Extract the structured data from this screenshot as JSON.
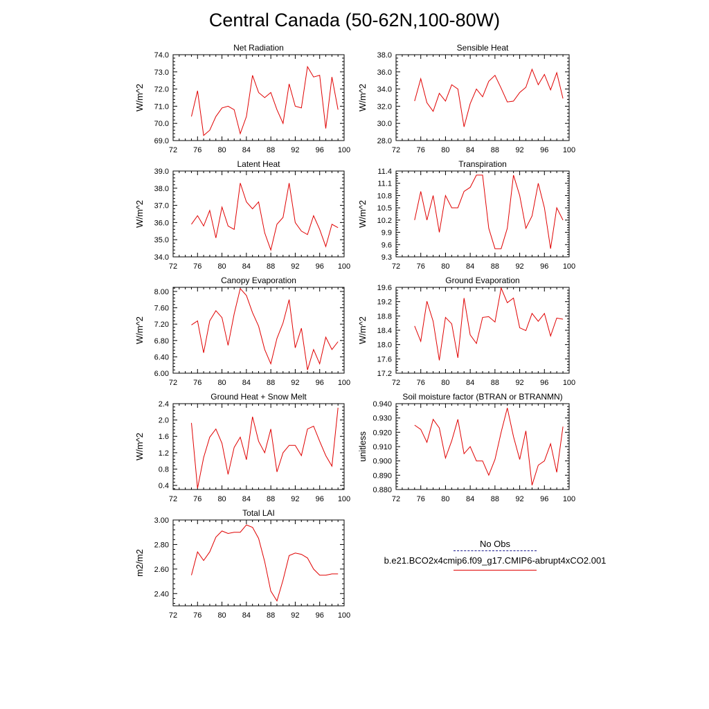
{
  "title": "Central Canada (50-62N,100-80W)",
  "legend": {
    "obs_label": "No Obs",
    "obs_color": "#1a1a8c",
    "model_label": "b.e21.BCO2x4cmip6.f09_g17.CMIP6-abrupt4xCO2.001",
    "model_color": "#e00000"
  },
  "chart_data": [
    {
      "type": "line",
      "title": "Net Radiation",
      "ylabel": "W/m^2",
      "xlim": [
        72,
        100
      ],
      "ylim": [
        69.0,
        74.0
      ],
      "x_ticks": [
        "72",
        "76",
        "80",
        "84",
        "88",
        "92",
        "96",
        "100"
      ],
      "y_ticks": [
        "69.0",
        "70.0",
        "71.0",
        "72.0",
        "73.0",
        "74.0"
      ],
      "x": [
        75,
        76,
        77,
        78,
        79,
        80,
        81,
        82,
        83,
        84,
        85,
        86,
        87,
        88,
        89,
        90,
        91,
        92,
        93,
        94,
        95,
        96,
        97,
        98,
        99
      ],
      "y": [
        70.4,
        71.9,
        69.3,
        69.6,
        70.4,
        70.9,
        71.0,
        70.8,
        69.4,
        70.4,
        72.8,
        71.8,
        71.5,
        71.8,
        70.8,
        70.0,
        72.3,
        71.0,
        70.9,
        73.3,
        72.7,
        72.8,
        69.7,
        72.7,
        70.8
      ]
    },
    {
      "type": "line",
      "title": "Sensible Heat",
      "ylabel": "W/m^2",
      "xlim": [
        72,
        100
      ],
      "ylim": [
        28.0,
        38.0
      ],
      "x_ticks": [
        "72",
        "76",
        "80",
        "84",
        "88",
        "92",
        "96",
        "100"
      ],
      "y_ticks": [
        "28.0",
        "30.0",
        "32.0",
        "34.0",
        "36.0",
        "38.0"
      ],
      "x": [
        75,
        76,
        77,
        78,
        79,
        80,
        81,
        82,
        83,
        84,
        85,
        86,
        87,
        88,
        89,
        90,
        91,
        92,
        93,
        94,
        95,
        96,
        97,
        98,
        99
      ],
      "y": [
        32.6,
        35.2,
        32.4,
        31.4,
        33.5,
        32.6,
        34.5,
        34.0,
        29.6,
        32.3,
        34.0,
        33.1,
        34.9,
        35.6,
        34.1,
        32.5,
        32.6,
        33.6,
        34.2,
        36.3,
        34.5,
        35.7,
        33.9,
        35.9,
        32.9
      ]
    },
    {
      "type": "line",
      "title": "Latent Heat",
      "ylabel": "W/m^2",
      "xlim": [
        72,
        100
      ],
      "ylim": [
        34.0,
        39.0
      ],
      "x_ticks": [
        "72",
        "76",
        "80",
        "84",
        "88",
        "92",
        "96",
        "100"
      ],
      "y_ticks": [
        "34.0",
        "35.0",
        "36.0",
        "37.0",
        "38.0",
        "39.0"
      ],
      "x": [
        75,
        76,
        77,
        78,
        79,
        80,
        81,
        82,
        83,
        84,
        85,
        86,
        87,
        88,
        89,
        90,
        91,
        92,
        93,
        94,
        95,
        96,
        97,
        98,
        99
      ],
      "y": [
        35.9,
        36.4,
        35.8,
        36.7,
        35.1,
        36.9,
        35.8,
        35.6,
        38.3,
        37.2,
        36.8,
        37.2,
        35.4,
        34.4,
        35.9,
        36.3,
        38.3,
        36.0,
        35.5,
        35.3,
        36.4,
        35.6,
        34.6,
        35.9,
        35.7
      ]
    },
    {
      "type": "line",
      "title": "Transpiration",
      "ylabel": "W/m^2",
      "xlim": [
        72,
        100
      ],
      "ylim": [
        9.3,
        11.4
      ],
      "x_ticks": [
        "72",
        "76",
        "80",
        "84",
        "88",
        "92",
        "96",
        "100"
      ],
      "y_ticks": [
        "9.3",
        "9.6",
        "9.9",
        "10.2",
        "10.5",
        "10.8",
        "11.1",
        "11.4"
      ],
      "x": [
        75,
        76,
        77,
        78,
        79,
        80,
        81,
        82,
        83,
        84,
        85,
        86,
        87,
        88,
        89,
        90,
        91,
        92,
        93,
        94,
        95,
        96,
        97,
        98,
        99
      ],
      "y": [
        10.2,
        10.9,
        10.2,
        10.8,
        9.9,
        10.8,
        10.5,
        10.5,
        10.9,
        11.0,
        11.3,
        11.3,
        10.0,
        9.5,
        9.5,
        10.0,
        11.3,
        10.8,
        10.0,
        10.3,
        11.1,
        10.5,
        9.5,
        10.5,
        10.2
      ]
    },
    {
      "type": "line",
      "title": "Canopy Evaporation",
      "ylabel": "W/m^2",
      "xlim": [
        72,
        100
      ],
      "ylim": [
        6.0,
        8.1
      ],
      "x_ticks": [
        "72",
        "76",
        "80",
        "84",
        "88",
        "92",
        "96",
        "100"
      ],
      "y_ticks": [
        "6.00",
        "6.40",
        "6.80",
        "7.20",
        "7.60",
        "8.00"
      ],
      "x": [
        75,
        76,
        77,
        78,
        79,
        80,
        81,
        82,
        83,
        84,
        85,
        86,
        87,
        88,
        89,
        90,
        91,
        92,
        93,
        94,
        95,
        96,
        97,
        98,
        99
      ],
      "y": [
        7.18,
        7.28,
        6.5,
        7.28,
        7.53,
        7.36,
        6.68,
        7.45,
        8.07,
        7.9,
        7.48,
        7.15,
        6.58,
        6.23,
        6.85,
        7.23,
        7.8,
        6.62,
        7.1,
        6.08,
        6.58,
        6.23,
        6.88,
        6.58,
        6.77
      ]
    },
    {
      "type": "line",
      "title": "Ground Evaporation",
      "ylabel": "W/m^2",
      "xlim": [
        72,
        100
      ],
      "ylim": [
        17.2,
        19.6
      ],
      "x_ticks": [
        "72",
        "76",
        "80",
        "84",
        "88",
        "92",
        "96",
        "100"
      ],
      "y_ticks": [
        "17.2",
        "17.6",
        "18.0",
        "18.4",
        "18.8",
        "19.2",
        "19.6"
      ],
      "x": [
        75,
        76,
        77,
        78,
        79,
        80,
        81,
        82,
        83,
        84,
        85,
        86,
        87,
        88,
        89,
        90,
        91,
        92,
        93,
        94,
        95,
        96,
        97,
        98,
        99
      ],
      "y": [
        18.52,
        18.09,
        19.21,
        18.65,
        17.56,
        18.76,
        18.58,
        17.63,
        19.3,
        18.27,
        18.03,
        18.76,
        18.78,
        18.63,
        19.58,
        19.17,
        19.3,
        18.47,
        18.39,
        18.87,
        18.65,
        18.87,
        18.24,
        18.74,
        18.71
      ]
    },
    {
      "type": "line",
      "title": "Ground Heat + Snow Melt",
      "ylabel": "W/m^2",
      "xlim": [
        72,
        100
      ],
      "ylim": [
        0.3,
        2.4
      ],
      "x_ticks": [
        "72",
        "76",
        "80",
        "84",
        "88",
        "92",
        "96",
        "100"
      ],
      "y_ticks": [
        "0.4",
        "0.8",
        "1.2",
        "1.6",
        "2.0",
        "2.4"
      ],
      "x": [
        75,
        76,
        77,
        78,
        79,
        80,
        81,
        82,
        83,
        84,
        85,
        86,
        87,
        88,
        89,
        90,
        91,
        92,
        93,
        94,
        95,
        96,
        97,
        98,
        99
      ],
      "y": [
        1.93,
        0.33,
        1.08,
        1.58,
        1.78,
        1.43,
        0.67,
        1.33,
        1.58,
        1.03,
        2.08,
        1.48,
        1.2,
        1.78,
        0.73,
        1.2,
        1.38,
        1.38,
        1.13,
        1.78,
        1.85,
        1.48,
        1.13,
        0.87,
        2.3
      ]
    },
    {
      "type": "line",
      "title": "Soil moisture factor (BTRAN or BTRANMN)",
      "ylabel": "unitless",
      "xlim": [
        72,
        100
      ],
      "ylim": [
        0.88,
        0.94
      ],
      "x_ticks": [
        "72",
        "76",
        "80",
        "84",
        "88",
        "92",
        "96",
        "100"
      ],
      "y_ticks": [
        "0.880",
        "0.890",
        "0.900",
        "0.910",
        "0.920",
        "0.930",
        "0.940"
      ],
      "x": [
        75,
        76,
        77,
        78,
        79,
        80,
        81,
        82,
        83,
        84,
        85,
        86,
        87,
        88,
        89,
        90,
        91,
        92,
        93,
        94,
        95,
        96,
        97,
        98,
        99
      ],
      "y": [
        0.925,
        0.922,
        0.913,
        0.929,
        0.923,
        0.902,
        0.914,
        0.929,
        0.905,
        0.91,
        0.9,
        0.9,
        0.89,
        0.901,
        0.92,
        0.937,
        0.917,
        0.901,
        0.921,
        0.883,
        0.897,
        0.9,
        0.912,
        0.892,
        0.924
      ]
    },
    {
      "type": "line",
      "title": "Total LAI",
      "ylabel": "m2/m2",
      "xlim": [
        72,
        100
      ],
      "ylim": [
        2.3,
        3.0
      ],
      "x_ticks": [
        "72",
        "76",
        "80",
        "84",
        "88",
        "92",
        "96",
        "100"
      ],
      "y_ticks": [
        "2.40",
        "2.60",
        "2.80",
        "3.00"
      ],
      "x": [
        75,
        76,
        77,
        78,
        79,
        80,
        81,
        82,
        83,
        84,
        85,
        86,
        87,
        88,
        89,
        90,
        91,
        92,
        93,
        94,
        95,
        96,
        97,
        98,
        99
      ],
      "y": [
        2.55,
        2.74,
        2.67,
        2.74,
        2.86,
        2.91,
        2.89,
        2.9,
        2.9,
        2.96,
        2.94,
        2.85,
        2.66,
        2.42,
        2.34,
        2.51,
        2.71,
        2.73,
        2.72,
        2.69,
        2.6,
        2.55,
        2.55,
        2.56,
        2.56
      ]
    }
  ]
}
